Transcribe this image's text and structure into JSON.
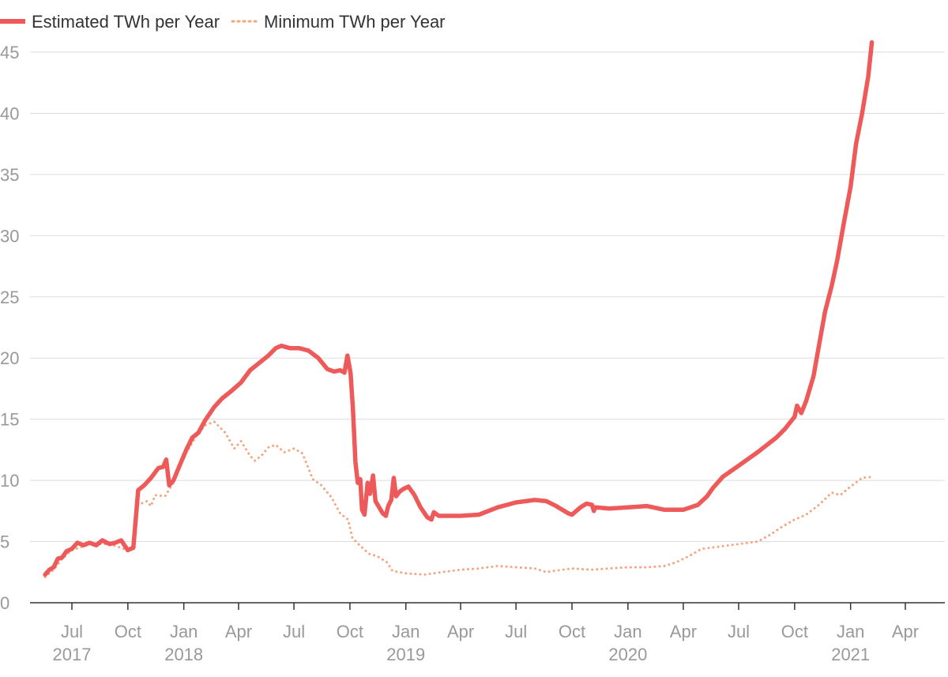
{
  "chart_data": {
    "type": "line",
    "title": "",
    "xlabel": "",
    "ylabel": "",
    "ylim": [
      0,
      45
    ],
    "grid": true,
    "legend_position": "top-left",
    "y_ticks": [
      0,
      5,
      10,
      15,
      20,
      25,
      30,
      35,
      40,
      45
    ],
    "x_ticks": [
      {
        "date": "2017-07-01",
        "label": "Jul",
        "year": "2017"
      },
      {
        "date": "2017-10-01",
        "label": "Oct",
        "year": ""
      },
      {
        "date": "2018-01-01",
        "label": "Jan",
        "year": "2018"
      },
      {
        "date": "2018-04-01",
        "label": "Apr",
        "year": ""
      },
      {
        "date": "2018-07-01",
        "label": "Jul",
        "year": ""
      },
      {
        "date": "2018-10-01",
        "label": "Oct",
        "year": ""
      },
      {
        "date": "2019-01-01",
        "label": "Jan",
        "year": "2019"
      },
      {
        "date": "2019-04-01",
        "label": "Apr",
        "year": ""
      },
      {
        "date": "2019-07-01",
        "label": "Jul",
        "year": ""
      },
      {
        "date": "2019-10-01",
        "label": "Oct",
        "year": ""
      },
      {
        "date": "2020-01-01",
        "label": "Jan",
        "year": "2020"
      },
      {
        "date": "2020-04-01",
        "label": "Apr",
        "year": ""
      },
      {
        "date": "2020-07-01",
        "label": "Jul",
        "year": ""
      },
      {
        "date": "2020-10-01",
        "label": "Oct",
        "year": ""
      },
      {
        "date": "2021-01-01",
        "label": "Jan",
        "year": "2021"
      },
      {
        "date": "2021-04-01",
        "label": "Apr",
        "year": ""
      }
    ],
    "series": [
      {
        "name": "Estimated TWh per Year",
        "color": "#ee5a5a",
        "style": "solid",
        "points": [
          [
            "2017-05-18",
            2.3
          ],
          [
            "2017-05-25",
            2.7
          ],
          [
            "2017-06-01",
            2.9
          ],
          [
            "2017-06-08",
            3.6
          ],
          [
            "2017-06-15",
            3.7
          ],
          [
            "2017-06-22",
            4.2
          ],
          [
            "2017-07-01",
            4.4
          ],
          [
            "2017-07-10",
            4.9
          ],
          [
            "2017-07-20",
            4.7
          ],
          [
            "2017-07-30",
            4.9
          ],
          [
            "2017-08-10",
            4.7
          ],
          [
            "2017-08-20",
            5.1
          ],
          [
            "2017-09-01",
            4.8
          ],
          [
            "2017-09-10",
            4.9
          ],
          [
            "2017-09-20",
            5.1
          ],
          [
            "2017-10-01",
            4.3
          ],
          [
            "2017-10-10",
            4.5
          ],
          [
            "2017-10-18",
            9.2
          ],
          [
            "2017-10-28",
            9.6
          ],
          [
            "2017-11-08",
            10.2
          ],
          [
            "2017-11-20",
            11.0
          ],
          [
            "2017-11-28",
            11.1
          ],
          [
            "2017-12-03",
            11.7
          ],
          [
            "2017-12-08",
            9.6
          ],
          [
            "2017-12-15",
            10.0
          ],
          [
            "2017-12-25",
            11.2
          ],
          [
            "2018-01-05",
            12.5
          ],
          [
            "2018-01-15",
            13.5
          ],
          [
            "2018-01-25",
            13.9
          ],
          [
            "2018-02-05",
            14.9
          ],
          [
            "2018-02-20",
            16.0
          ],
          [
            "2018-03-05",
            16.7
          ],
          [
            "2018-03-20",
            17.3
          ],
          [
            "2018-04-05",
            18.0
          ],
          [
            "2018-04-20",
            19.0
          ],
          [
            "2018-05-05",
            19.6
          ],
          [
            "2018-05-20",
            20.2
          ],
          [
            "2018-06-01",
            20.8
          ],
          [
            "2018-06-10",
            21.0
          ],
          [
            "2018-06-25",
            20.8
          ],
          [
            "2018-07-10",
            20.8
          ],
          [
            "2018-07-25",
            20.6
          ],
          [
            "2018-08-10",
            20.0
          ],
          [
            "2018-08-25",
            19.1
          ],
          [
            "2018-09-05",
            18.9
          ],
          [
            "2018-09-15",
            19.0
          ],
          [
            "2018-09-22",
            18.8
          ],
          [
            "2018-09-27",
            20.2
          ],
          [
            "2018-10-02",
            18.8
          ],
          [
            "2018-10-06",
            15.8
          ],
          [
            "2018-10-10",
            11.5
          ],
          [
            "2018-10-14",
            9.8
          ],
          [
            "2018-10-18",
            10.1
          ],
          [
            "2018-10-21",
            7.6
          ],
          [
            "2018-10-25",
            7.2
          ],
          [
            "2018-10-30",
            9.8
          ],
          [
            "2018-11-03",
            8.9
          ],
          [
            "2018-11-08",
            10.4
          ],
          [
            "2018-11-12",
            8.3
          ],
          [
            "2018-11-18",
            7.8
          ],
          [
            "2018-11-24",
            7.3
          ],
          [
            "2018-11-29",
            7.1
          ],
          [
            "2018-12-03",
            7.9
          ],
          [
            "2018-12-08",
            8.4
          ],
          [
            "2018-12-12",
            10.2
          ],
          [
            "2018-12-16",
            8.7
          ],
          [
            "2018-12-22",
            9.1
          ],
          [
            "2018-12-28",
            9.3
          ],
          [
            "2019-01-05",
            9.5
          ],
          [
            "2019-01-15",
            8.8
          ],
          [
            "2019-01-25",
            7.8
          ],
          [
            "2019-02-05",
            7.0
          ],
          [
            "2019-02-12",
            6.8
          ],
          [
            "2019-02-16",
            7.4
          ],
          [
            "2019-02-24",
            7.1
          ],
          [
            "2019-03-10",
            7.1
          ],
          [
            "2019-04-01",
            7.1
          ],
          [
            "2019-05-01",
            7.2
          ],
          [
            "2019-06-01",
            7.8
          ],
          [
            "2019-07-01",
            8.2
          ],
          [
            "2019-08-01",
            8.4
          ],
          [
            "2019-08-20",
            8.3
          ],
          [
            "2019-09-05",
            7.9
          ],
          [
            "2019-09-25",
            7.3
          ],
          [
            "2019-10-01",
            7.2
          ],
          [
            "2019-10-15",
            7.8
          ],
          [
            "2019-10-25",
            8.1
          ],
          [
            "2019-11-03",
            8.0
          ],
          [
            "2019-11-06",
            7.5
          ],
          [
            "2019-11-08",
            7.8
          ],
          [
            "2019-12-01",
            7.7
          ],
          [
            "2020-01-01",
            7.8
          ],
          [
            "2020-02-01",
            7.9
          ],
          [
            "2020-03-01",
            7.6
          ],
          [
            "2020-04-01",
            7.6
          ],
          [
            "2020-04-25",
            8.0
          ],
          [
            "2020-05-10",
            8.7
          ],
          [
            "2020-05-20",
            9.4
          ],
          [
            "2020-06-05",
            10.3
          ],
          [
            "2020-07-01",
            11.2
          ],
          [
            "2020-08-01",
            12.3
          ],
          [
            "2020-09-01",
            13.5
          ],
          [
            "2020-09-15",
            14.2
          ],
          [
            "2020-10-01",
            15.2
          ],
          [
            "2020-10-05",
            16.1
          ],
          [
            "2020-10-12",
            15.5
          ],
          [
            "2020-10-20",
            16.5
          ],
          [
            "2020-11-01",
            18.5
          ],
          [
            "2020-11-10",
            21.0
          ],
          [
            "2020-11-20",
            23.8
          ],
          [
            "2020-12-01",
            25.9
          ],
          [
            "2020-12-10",
            28.0
          ],
          [
            "2020-12-20",
            30.8
          ],
          [
            "2021-01-01",
            34.0
          ],
          [
            "2021-01-10",
            37.5
          ],
          [
            "2021-01-20",
            40.0
          ],
          [
            "2021-01-30",
            43.0
          ],
          [
            "2021-02-05",
            45.8
          ]
        ]
      },
      {
        "name": "Minimum TWh per Year",
        "color": "#f4a582",
        "style": "dotted",
        "points": [
          [
            "2017-05-18",
            2.1
          ],
          [
            "2017-06-01",
            2.7
          ],
          [
            "2017-06-15",
            3.6
          ],
          [
            "2017-07-01",
            4.3
          ],
          [
            "2017-08-01",
            4.8
          ],
          [
            "2017-09-01",
            4.8
          ],
          [
            "2017-10-01",
            4.3
          ],
          [
            "2017-10-10",
            4.5
          ],
          [
            "2017-10-18",
            8.0
          ],
          [
            "2017-11-01",
            8.3
          ],
          [
            "2017-11-08",
            7.9
          ],
          [
            "2017-11-15",
            8.8
          ],
          [
            "2017-12-01",
            8.7
          ],
          [
            "2017-12-15",
            9.8
          ],
          [
            "2018-01-01",
            11.9
          ],
          [
            "2018-01-20",
            13.5
          ],
          [
            "2018-02-05",
            14.5
          ],
          [
            "2018-02-20",
            14.8
          ],
          [
            "2018-03-10",
            13.9
          ],
          [
            "2018-03-25",
            12.6
          ],
          [
            "2018-04-05",
            13.2
          ],
          [
            "2018-04-20",
            12.0
          ],
          [
            "2018-04-28",
            11.6
          ],
          [
            "2018-05-10",
            12.1
          ],
          [
            "2018-05-20",
            12.7
          ],
          [
            "2018-06-01",
            12.9
          ],
          [
            "2018-06-15",
            12.3
          ],
          [
            "2018-07-01",
            12.6
          ],
          [
            "2018-07-15",
            12.2
          ],
          [
            "2018-08-01",
            10.1
          ],
          [
            "2018-08-15",
            9.6
          ],
          [
            "2018-09-01",
            8.6
          ],
          [
            "2018-09-15",
            7.3
          ],
          [
            "2018-09-28",
            6.8
          ],
          [
            "2018-10-05",
            5.3
          ],
          [
            "2018-10-15",
            4.8
          ],
          [
            "2018-11-01",
            4.0
          ],
          [
            "2018-11-15",
            3.8
          ],
          [
            "2018-12-01",
            3.3
          ],
          [
            "2018-12-10",
            2.6
          ],
          [
            "2019-01-01",
            2.4
          ],
          [
            "2019-02-01",
            2.3
          ],
          [
            "2019-03-01",
            2.5
          ],
          [
            "2019-04-01",
            2.7
          ],
          [
            "2019-05-01",
            2.8
          ],
          [
            "2019-06-01",
            3.0
          ],
          [
            "2019-07-01",
            2.9
          ],
          [
            "2019-08-01",
            2.8
          ],
          [
            "2019-08-20",
            2.5
          ],
          [
            "2019-09-01",
            2.6
          ],
          [
            "2019-10-01",
            2.8
          ],
          [
            "2019-11-01",
            2.7
          ],
          [
            "2019-12-01",
            2.8
          ],
          [
            "2020-01-01",
            2.9
          ],
          [
            "2020-02-01",
            2.9
          ],
          [
            "2020-03-01",
            3.0
          ],
          [
            "2020-03-20",
            3.3
          ],
          [
            "2020-04-10",
            3.8
          ],
          [
            "2020-05-01",
            4.4
          ],
          [
            "2020-06-01",
            4.6
          ],
          [
            "2020-07-01",
            4.8
          ],
          [
            "2020-08-01",
            5.0
          ],
          [
            "2020-08-20",
            5.5
          ],
          [
            "2020-09-10",
            6.2
          ],
          [
            "2020-10-01",
            6.8
          ],
          [
            "2020-10-20",
            7.2
          ],
          [
            "2020-11-10",
            8.0
          ],
          [
            "2020-12-01",
            9.0
          ],
          [
            "2020-12-15",
            8.8
          ],
          [
            "2021-01-01",
            9.5
          ],
          [
            "2021-01-20",
            10.2
          ],
          [
            "2021-02-05",
            10.3
          ]
        ]
      }
    ]
  }
}
